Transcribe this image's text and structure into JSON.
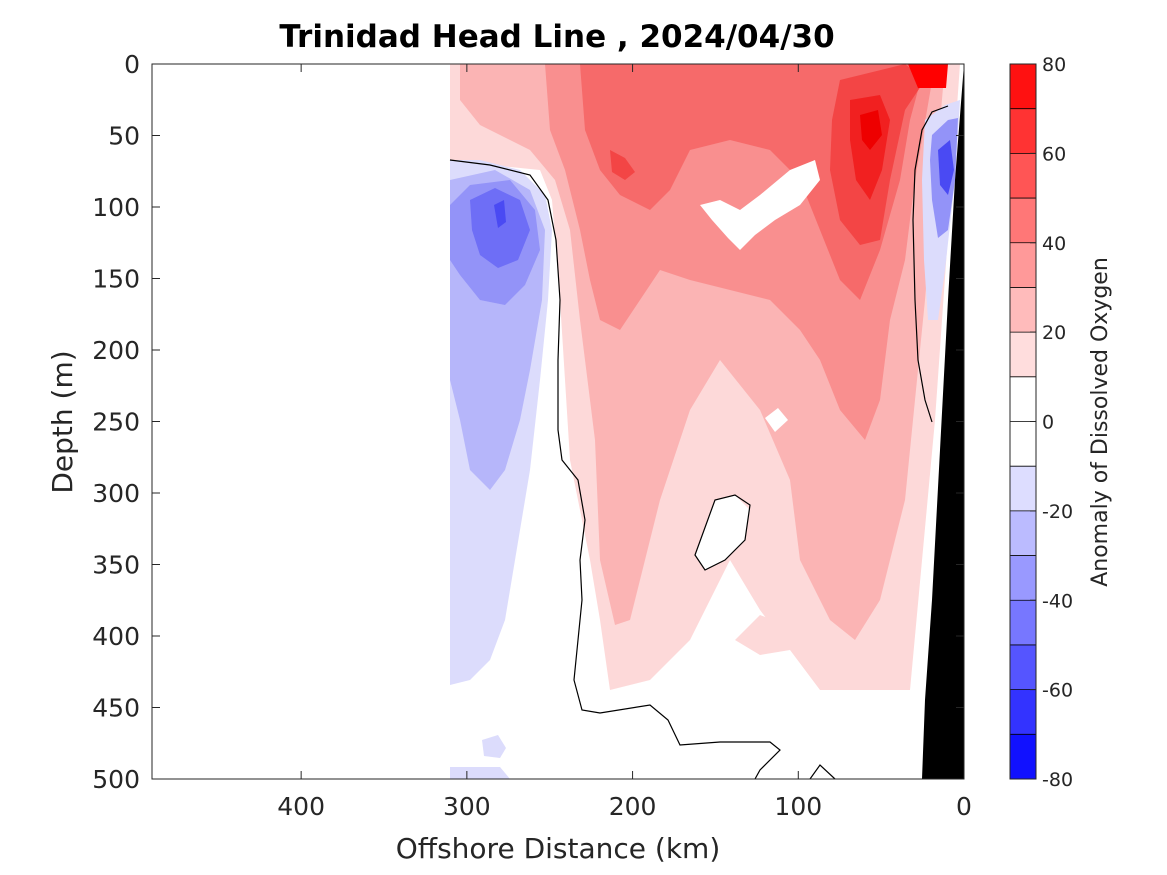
{
  "chart_data": {
    "type": "heatmap",
    "title": "Trinidad Head Line , 2024/04/30",
    "xlabel": "Offshore Distance (km)",
    "ylabel": "Depth (m)",
    "colorbar_label": "Anomaly of Dissolved Oxygen",
    "xlim": [
      490,
      0
    ],
    "ylim": [
      500,
      0
    ],
    "x_ticks": [
      400,
      300,
      200,
      100,
      0
    ],
    "x_tick_labels": [
      "400",
      "300",
      "200",
      "100",
      "0"
    ],
    "y_ticks": [
      0,
      50,
      100,
      150,
      200,
      250,
      300,
      350,
      400,
      450,
      500
    ],
    "y_tick_labels": [
      "0",
      "50",
      "100",
      "150",
      "200",
      "250",
      "300",
      "350",
      "400",
      "450",
      "500"
    ],
    "colorbar": {
      "range": [
        -80,
        80
      ],
      "step": 10,
      "tick_values": [
        80,
        60,
        40,
        20,
        0,
        -20,
        -40,
        -60,
        -80
      ],
      "tick_labels": [
        "80",
        "60",
        "40",
        "20",
        "0",
        "-20",
        "-40",
        "-60",
        "-80"
      ]
    },
    "features": [
      {
        "name": "negative-core-offshore",
        "x": 280,
        "depth": 105,
        "value": -45
      },
      {
        "name": "negative-tongue-offshore",
        "x": 285,
        "depth": 300,
        "value": -20
      },
      {
        "name": "positive-max-upper",
        "x": 205,
        "depth": 70,
        "value": 45
      },
      {
        "name": "positive-max-shelf",
        "x": 55,
        "depth": 60,
        "value": 65
      },
      {
        "name": "positive-max-surface",
        "x": 20,
        "depth": 5,
        "value": 75
      },
      {
        "name": "negative-nearshore",
        "x": 15,
        "depth": 90,
        "value": -35
      },
      {
        "name": "positive-tongue-midcolumn",
        "x": 200,
        "depth": 380,
        "value": 20
      }
    ],
    "bathymetry_color": "#000000",
    "zero_contour_color": "#000000"
  }
}
